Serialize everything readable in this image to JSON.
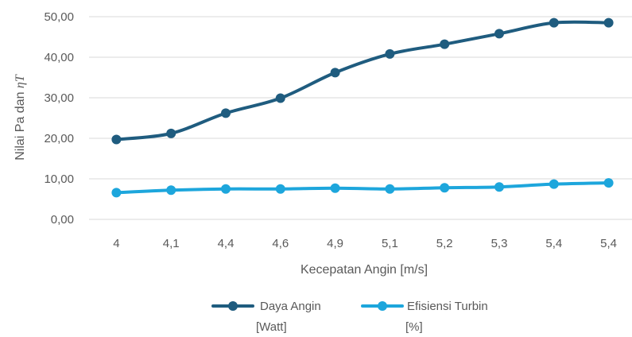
{
  "chart_data": {
    "type": "line",
    "categories": [
      "4",
      "4,1",
      "4,4",
      "4,6",
      "4,9",
      "5,1",
      "5,2",
      "5,3",
      "5,4",
      "5,4"
    ],
    "series": [
      {
        "name_line1": "Daya Angin",
        "name_line2": "[Watt]",
        "color": "#1f5c7f",
        "values": [
          19.7,
          21.2,
          26.2,
          29.9,
          36.2,
          40.8,
          43.2,
          45.8,
          48.5,
          48.5
        ]
      },
      {
        "name_line1": "Efisiensi Turbin",
        "name_line2": "[%]",
        "color": "#1da6dc",
        "values": [
          6.6,
          7.2,
          7.5,
          7.5,
          7.7,
          7.5,
          7.8,
          8.0,
          8.7,
          9.0
        ]
      }
    ],
    "yticks": [
      "0,00",
      "10,00",
      "20,00",
      "30,00",
      "40,00",
      "50,00"
    ],
    "ylim": [
      0,
      50
    ],
    "xlabel": "Kecepatan Angin [m/s]",
    "ylabel_prefix": "Nilai Pa dan ",
    "ylabel_symbol": "ηT",
    "grid": true,
    "gridline_color": "#d9d9d9",
    "legend_position": "bottom"
  }
}
